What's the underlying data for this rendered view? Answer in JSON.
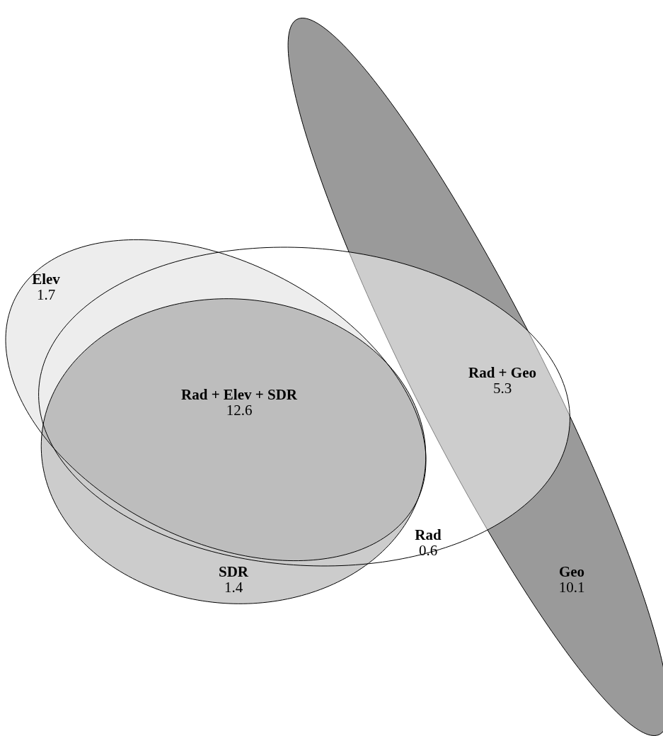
{
  "chart_data": {
    "type": "other",
    "categories": [
      "Elev",
      "Rad + Elev + SDR",
      "Rad + Geo",
      "Rad",
      "SDR",
      "Geo"
    ],
    "values": [
      1.7,
      12.6,
      5.3,
      0.6,
      1.4,
      10.1
    ],
    "data_labels": true
  }
}
